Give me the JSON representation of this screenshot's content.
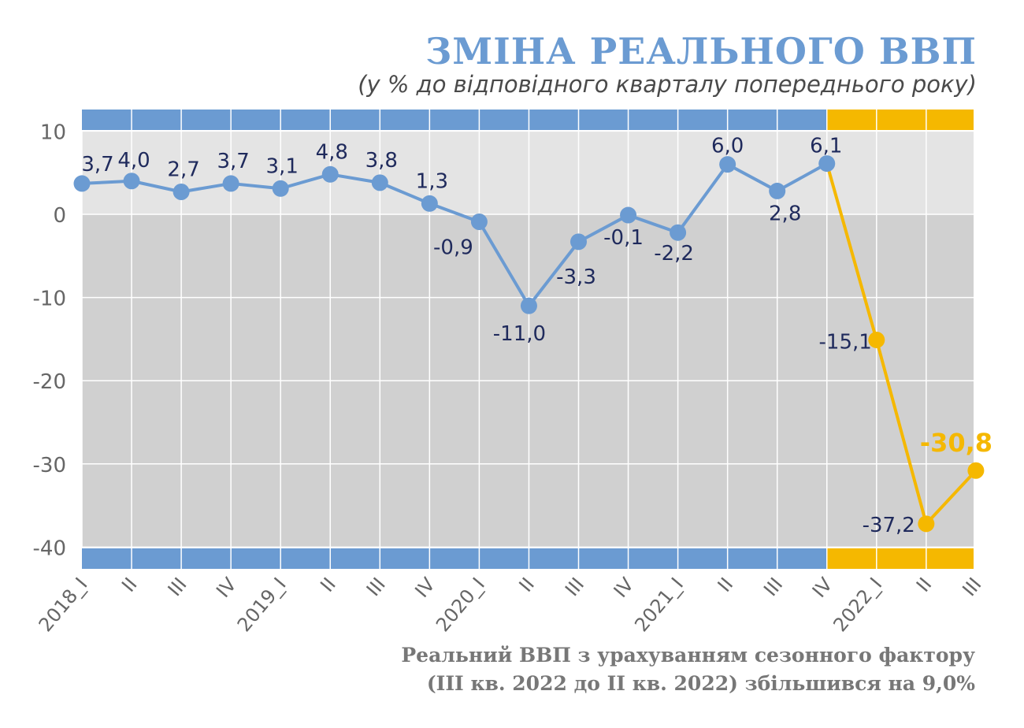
{
  "header": {
    "title": "ЗМІНА РЕАЛЬНОГО ВВП",
    "subtitle": "(у % до відповідного кварталу попереднього року)"
  },
  "footnote": {
    "line1": "Реальний ВВП з урахуванням сезонного фактору",
    "line2": "(III кв. 2022 до II кв. 2022) збільшився на 9,0%"
  },
  "colors": {
    "blue": "#6b9bd2",
    "yellow": "#f5b800",
    "label_dark": "#1f2a5c",
    "positive_band": "#e4e4e4",
    "negative_band": "#d0d0d0",
    "axis_text": "#666666"
  },
  "chart_data": {
    "type": "line",
    "title": "ЗМІНА РЕАЛЬНОГО ВВП",
    "subtitle": "(у % до відповідного кварталу попереднього року)",
    "xlabel": "",
    "ylabel": "",
    "ylim": [
      -40,
      10
    ],
    "yticks": [
      10,
      0,
      -10,
      -20,
      -30,
      -40
    ],
    "grid": true,
    "categories": [
      "2018_I",
      "II",
      "III",
      "IV",
      "2019_I",
      "II",
      "III",
      "IV",
      "2020_I",
      "II",
      "III",
      "IV",
      "2021_I",
      "II",
      "III",
      "IV",
      "2022_I",
      "II",
      "III"
    ],
    "values": [
      3.7,
      4.0,
      2.7,
      3.7,
      3.1,
      4.8,
      3.8,
      1.3,
      -0.9,
      -11.0,
      -3.3,
      -0.1,
      -2.2,
      6.0,
      2.8,
      6.1,
      -15.1,
      -37.2,
      -30.8
    ],
    "labels": [
      "3,7",
      "4,0",
      "2,7",
      "3,7",
      "3,1",
      "4,8",
      "3,8",
      "1,3",
      "-0,9",
      "-11,0",
      "-3,3",
      "-0,1",
      "-2,2",
      "6,0",
      "2,8",
      "6,1",
      "-15,1",
      "-37,2",
      "-30,8"
    ],
    "highlight_from_index": 15
  }
}
